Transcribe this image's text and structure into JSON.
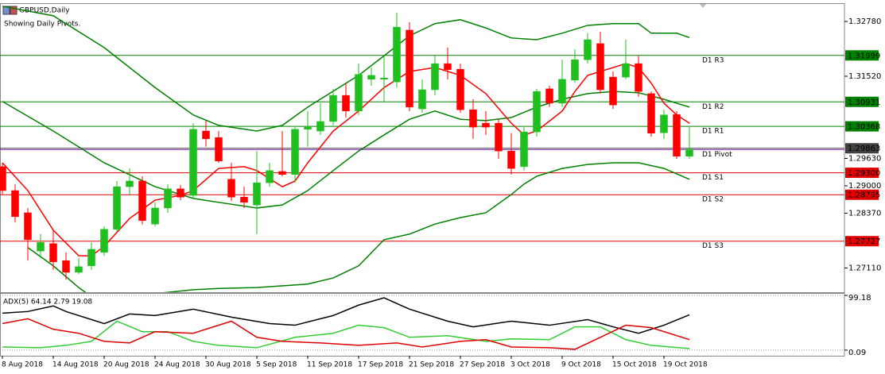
{
  "chart_data": [
    {
      "type": "candlestick",
      "title": "GBPUSD,Daily",
      "subtitle": "Showing Daily Pivots.",
      "up_color": "#1fbf1f",
      "down_color": "#ff0000",
      "ylim": [
        1.26553,
        1.33182
      ],
      "yticks": [
        {
          "value": 1.3278,
          "label": "1.32780"
        },
        {
          "value": 1.3152,
          "label": "1.31520"
        },
        {
          "value": 1.2963,
          "label": "1.29630"
        },
        {
          "value": 1.29,
          "label": "1.29000"
        },
        {
          "value": 1.2837,
          "label": "1.28370"
        },
        {
          "value": 1.2711,
          "label": "1.27110"
        }
      ],
      "xticks": [
        {
          "value": 0,
          "label": "8 Aug 2018"
        },
        {
          "value": 4,
          "label": "14 Aug 2018"
        },
        {
          "value": 8,
          "label": "20 Aug 2018"
        },
        {
          "value": 12,
          "label": "24 Aug 2018"
        },
        {
          "value": 16,
          "label": "30 Aug 2018"
        },
        {
          "value": 20,
          "label": "5 Sep 2018"
        },
        {
          "value": 24,
          "label": "11 Sep 2018"
        },
        {
          "value": 28,
          "label": "17 Sep 2018"
        },
        {
          "value": 32,
          "label": "21 Sep 2018"
        },
        {
          "value": 36,
          "label": "27 Sep 2018"
        },
        {
          "value": 40,
          "label": "3 Oct 2018"
        },
        {
          "value": 44,
          "label": "9 Oct 2018"
        },
        {
          "value": 48,
          "label": "15 Oct 2018"
        },
        {
          "value": 52,
          "label": "19 Oct 2018"
        }
      ],
      "ohlc": [
        [
          1.2944,
          1.2953,
          1.288,
          1.2889
        ],
        [
          1.2889,
          1.2904,
          1.2816,
          1.2829
        ],
        [
          1.2838,
          1.2849,
          1.2728,
          1.2776
        ],
        [
          1.275,
          1.2789,
          1.2734,
          1.277
        ],
        [
          1.2767,
          1.2798,
          1.2707,
          1.2725
        ],
        [
          1.2728,
          1.2747,
          1.2684,
          1.2701
        ],
        [
          1.2701,
          1.2734,
          1.2697,
          1.2714
        ],
        [
          1.2716,
          1.277,
          1.2707,
          1.2754
        ],
        [
          1.2747,
          1.2807,
          1.2739,
          1.28
        ],
        [
          1.28,
          1.2911,
          1.2794,
          1.2898
        ],
        [
          1.2898,
          1.294,
          1.288,
          1.2911
        ],
        [
          1.2911,
          1.2922,
          1.2811,
          1.282
        ],
        [
          1.2812,
          1.2862,
          1.2807,
          1.2849
        ],
        [
          1.2849,
          1.2904,
          1.2838,
          1.2893
        ],
        [
          1.2893,
          1.2902,
          1.2867,
          1.2874
        ],
        [
          1.2878,
          1.3044,
          1.2871,
          1.303
        ],
        [
          1.3026,
          1.305,
          1.299,
          1.3008
        ],
        [
          1.3011,
          1.3026,
          1.2953,
          1.2957
        ],
        [
          1.2915,
          1.2953,
          1.2865,
          1.2874
        ],
        [
          1.2874,
          1.2898,
          1.2849,
          1.2862
        ],
        [
          1.2856,
          1.298,
          1.2789,
          1.2907
        ],
        [
          1.2907,
          1.2953,
          1.2898,
          1.2935
        ],
        [
          1.2933,
          1.3026,
          1.2922,
          1.2926
        ],
        [
          1.2926,
          1.3035,
          1.2907,
          1.303
        ],
        [
          1.303,
          1.3072,
          1.299,
          1.3035
        ],
        [
          1.3026,
          1.309,
          1.3017,
          1.3048
        ],
        [
          1.3048,
          1.3123,
          1.3039,
          1.3108
        ],
        [
          1.3108,
          1.3136,
          1.3057,
          1.3072
        ],
        [
          1.3072,
          1.3181,
          1.3063,
          1.3156
        ],
        [
          1.3145,
          1.3172,
          1.313,
          1.3154
        ],
        [
          1.3145,
          1.3199,
          1.3094,
          1.3148
        ],
        [
          1.3139,
          1.3298,
          1.3126,
          1.3265
        ],
        [
          1.3258,
          1.3276,
          1.3072,
          1.3081
        ],
        [
          1.3077,
          1.3145,
          1.3068,
          1.3121
        ],
        [
          1.3121,
          1.3199,
          1.3108,
          1.3181
        ],
        [
          1.3181,
          1.3218,
          1.3145,
          1.3167
        ],
        [
          1.3168,
          1.3181,
          1.3068,
          1.3075
        ],
        [
          1.3075,
          1.3099,
          1.3008,
          1.3035
        ],
        [
          1.3044,
          1.3072,
          1.3017,
          1.3035
        ],
        [
          1.3044,
          1.3053,
          1.2962,
          1.298
        ],
        [
          1.298,
          1.3021,
          1.2926,
          1.294
        ],
        [
          1.2944,
          1.3035,
          1.2935,
          1.3024
        ],
        [
          1.3024,
          1.3123,
          1.3013,
          1.3117
        ],
        [
          1.3123,
          1.313,
          1.3081,
          1.309
        ],
        [
          1.309,
          1.319,
          1.3081,
          1.3145
        ],
        [
          1.3143,
          1.3214,
          1.3137,
          1.319
        ],
        [
          1.319,
          1.3251,
          1.3181,
          1.3236
        ],
        [
          1.3227,
          1.3254,
          1.3112,
          1.3121
        ],
        [
          1.315,
          1.3163,
          1.3077,
          1.3086
        ],
        [
          1.315,
          1.3236,
          1.3145,
          1.3181
        ],
        [
          1.3181,
          1.3199,
          1.3105,
          1.3117
        ],
        [
          1.3112,
          1.3117,
          1.3013,
          1.3021
        ],
        [
          1.3022,
          1.3075,
          1.3008,
          1.3063
        ],
        [
          1.3064,
          1.3072,
          1.2962,
          1.2968
        ],
        [
          1.2968,
          1.3035,
          1.2962,
          1.2984
        ]
      ],
      "overlays": [
        {
          "color": "#008000",
          "x": [
            0,
            4,
            8,
            12,
            15,
            17,
            20,
            22,
            24,
            28,
            30,
            32,
            34,
            36,
            38,
            40,
            42,
            44,
            46,
            48,
            50,
            51,
            53,
            54
          ],
          "values": [
            1.3313,
            1.3291,
            1.3218,
            1.3126,
            1.3063,
            1.3039,
            1.3026,
            1.3039,
            1.3081,
            1.3154,
            1.3199,
            1.3245,
            1.3273,
            1.3282,
            1.3263,
            1.324,
            1.3236,
            1.3251,
            1.3269,
            1.3273,
            1.3273,
            1.3251,
            1.3251,
            1.3241
          ]
        },
        {
          "color": "#008000",
          "x": [
            0,
            4,
            8,
            12,
            15,
            17,
            20,
            22,
            24,
            26,
            28,
            30,
            32,
            34,
            36,
            38,
            40,
            42,
            44,
            46,
            48,
            50,
            52,
            54
          ],
          "values": [
            1.3094,
            1.3026,
            1.2953,
            1.2898,
            1.2871,
            1.2862,
            1.2849,
            1.2856,
            1.2889,
            1.2935,
            1.298,
            1.3017,
            1.3053,
            1.3072,
            1.3053,
            1.305,
            1.3057,
            1.3081,
            1.3099,
            1.3112,
            1.3117,
            1.3114,
            1.3099,
            1.3081
          ]
        },
        {
          "color": "#008000",
          "x": [
            2,
            4,
            6,
            8,
            12,
            15,
            17,
            20,
            24,
            26,
            28,
            30,
            32,
            34,
            36,
            38,
            40,
            41,
            42,
            44,
            46,
            48,
            50,
            52,
            54
          ],
          "values": [
            1.2758,
            1.2716,
            1.2666,
            1.2624,
            1.2652,
            1.2661,
            1.2664,
            1.2666,
            1.2674,
            1.2688,
            1.2716,
            1.2776,
            1.2789,
            1.2812,
            1.2827,
            1.2838,
            1.288,
            1.2904,
            1.2922,
            1.294,
            1.2949,
            1.2953,
            1.2953,
            1.294,
            1.2915
          ]
        },
        {
          "color": "#ff0000",
          "x": [
            0,
            2,
            4,
            6,
            7,
            8,
            10,
            12,
            14,
            15,
            17,
            19,
            20,
            22,
            23,
            24,
            26,
            28,
            30,
            32,
            34,
            36,
            38,
            40,
            41,
            42,
            44,
            45,
            46,
            48,
            49,
            50,
            51,
            52,
            53,
            54
          ],
          "values": [
            1.2953,
            1.2889,
            1.2798,
            1.2739,
            1.2739,
            1.2761,
            1.2825,
            1.2867,
            1.2878,
            1.2889,
            1.294,
            1.2944,
            1.2935,
            1.2898,
            1.2911,
            1.2953,
            1.3026,
            1.3072,
            1.3126,
            1.3163,
            1.3172,
            1.3154,
            1.3112,
            1.3044,
            1.3017,
            1.3026,
            1.3072,
            1.3117,
            1.3154,
            1.3172,
            1.3181,
            1.3172,
            1.3136,
            1.309,
            1.3063,
            1.3044
          ]
        }
      ],
      "levels": [
        {
          "name": "D1 R3",
          "value": 1.31999,
          "color": "#008000",
          "axis_label": true
        },
        {
          "name": "D1 R2",
          "value": 1.30931,
          "color": "#008000",
          "axis_label": true
        },
        {
          "name": "D1 R1",
          "value": 1.30368,
          "color": "#008000",
          "axis_label": true
        },
        {
          "name": "D1 Pivot",
          "value": 1.29834,
          "color": "#9932cc",
          "axis_label": false
        },
        {
          "name": "D1 S1",
          "value": 1.293,
          "value_label": "1.29300",
          "color": "#e00000",
          "axis_label": true
        },
        {
          "name": "D1 S2",
          "value": 1.28795,
          "color": "#e00000",
          "axis_label": true
        },
        {
          "name": "D1 S3",
          "value": 1.27727,
          "color": "#e00000",
          "axis_label": true
        }
      ],
      "last_price": {
        "value": 1.29863,
        "color": "#404040"
      }
    },
    {
      "type": "line",
      "title": "ADX(5) 64.14 2.79 19.08",
      "ylim": [
        -10.1,
        102.1
      ],
      "yticks": [
        99.18,
        0.09
      ],
      "grid": true,
      "series": [
        {
          "color": "#000000",
          "x": [
            0,
            2,
            4,
            5,
            8,
            10,
            12,
            15,
            18,
            21,
            23,
            26,
            28,
            30,
            32,
            35,
            37,
            40,
            43,
            46,
            48,
            50,
            52,
            54
          ],
          "values": [
            67.1,
            70.0,
            80.2,
            70.0,
            48.1,
            65.6,
            62.7,
            74.3,
            59.8,
            48.1,
            45.2,
            62.7,
            81.6,
            94.8,
            74.3,
            52.5,
            42.3,
            52.5,
            45.2,
            55.4,
            42.3,
            30.6,
            45.2,
            64.14
          ]
        },
        {
          "color": "#32cd32",
          "x": [
            0,
            3,
            5,
            7,
            9,
            11,
            13,
            15,
            17,
            20,
            23,
            26,
            28,
            30,
            32,
            35,
            38,
            40,
            43,
            45,
            47,
            49,
            51,
            54
          ],
          "values": [
            5.8,
            4.4,
            8.7,
            16.0,
            52.5,
            33.5,
            33.5,
            16.0,
            8.7,
            4.4,
            23.3,
            30.6,
            45.2,
            40.8,
            23.3,
            26.2,
            16.0,
            20.4,
            19.0,
            42.3,
            42.3,
            19.0,
            8.7,
            2.79
          ]
        },
        {
          "color": "#e00000",
          "x": [
            0,
            2,
            4,
            6,
            8,
            10,
            12,
            15,
            18,
            20,
            22,
            25,
            28,
            31,
            33,
            36,
            38,
            40,
            43,
            45,
            47,
            49,
            51,
            54
          ],
          "values": [
            48.1,
            56.9,
            37.9,
            30.6,
            16.0,
            13.1,
            33.5,
            30.6,
            52.5,
            23.3,
            16.0,
            13.1,
            8.7,
            13.1,
            5.8,
            16.0,
            19.0,
            5.8,
            4.4,
            1.5,
            23.3,
            45.2,
            40.8,
            19.08
          ]
        }
      ]
    }
  ]
}
